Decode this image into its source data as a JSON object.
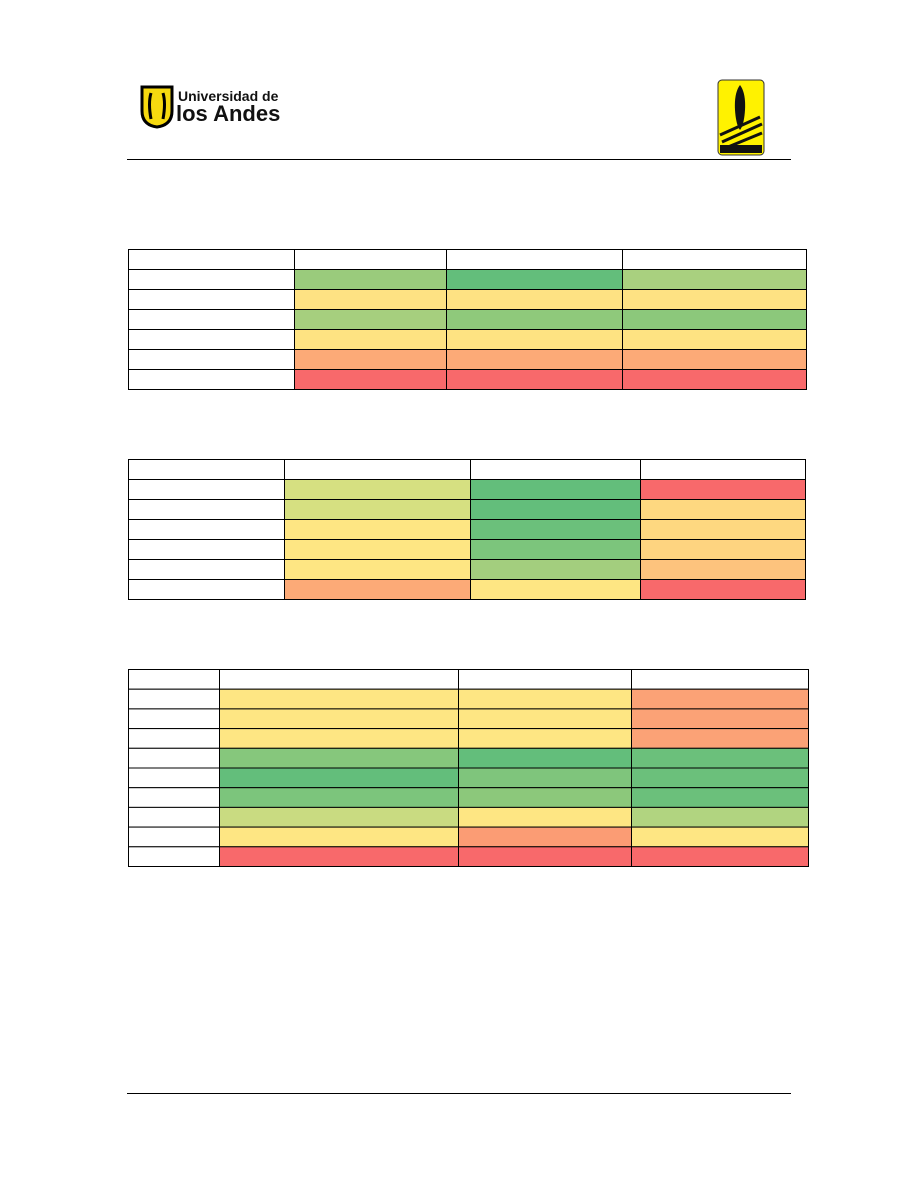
{
  "header": {
    "logo_line1": "Universidad de",
    "logo_line2": "los Andes"
  },
  "tables": [
    {
      "rows": [
        [
          "#9acb7c",
          "#63be7b",
          "#a9d07f"
        ],
        [
          "#fee283",
          "#fee283",
          "#fee283"
        ],
        [
          "#a6cf7e",
          "#8fc97b",
          "#8cc87b"
        ],
        [
          "#fee382",
          "#fee382",
          "#fee382"
        ],
        [
          "#fcaa77",
          "#fcaa77",
          "#fcaa77"
        ],
        [
          "#f8696b",
          "#f8696b",
          "#f8696b"
        ]
      ]
    },
    {
      "rows": [
        [
          "#d6e081",
          "#63be7b",
          "#f8696b"
        ],
        [
          "#d6e081",
          "#63be7b",
          "#fed880"
        ],
        [
          "#fee683",
          "#6bc07b",
          "#fed880"
        ],
        [
          "#fee683",
          "#7cc57c",
          "#fed480"
        ],
        [
          "#fee683",
          "#a3ce7e",
          "#fdc37d"
        ],
        [
          "#fcaa77",
          "#fee683",
          "#f8696b"
        ]
      ]
    },
    {
      "rows": [
        [
          "#fee683",
          "#fee683",
          "#fba276"
        ],
        [
          "#fee683",
          "#fee683",
          "#fba276"
        ],
        [
          "#fee683",
          "#fee683",
          "#fba276"
        ],
        [
          "#86c77c",
          "#63be7b",
          "#6bc07b"
        ],
        [
          "#63be7b",
          "#7fc57c",
          "#6bc07b"
        ],
        [
          "#7cc57c",
          "#8cc87b",
          "#6bc07b"
        ],
        [
          "#c9db81",
          "#fee683",
          "#b1d480"
        ],
        [
          "#fee683",
          "#fb9c74",
          "#fee683"
        ],
        [
          "#f8696b",
          "#f8696b",
          "#f8696b"
        ]
      ]
    }
  ]
}
